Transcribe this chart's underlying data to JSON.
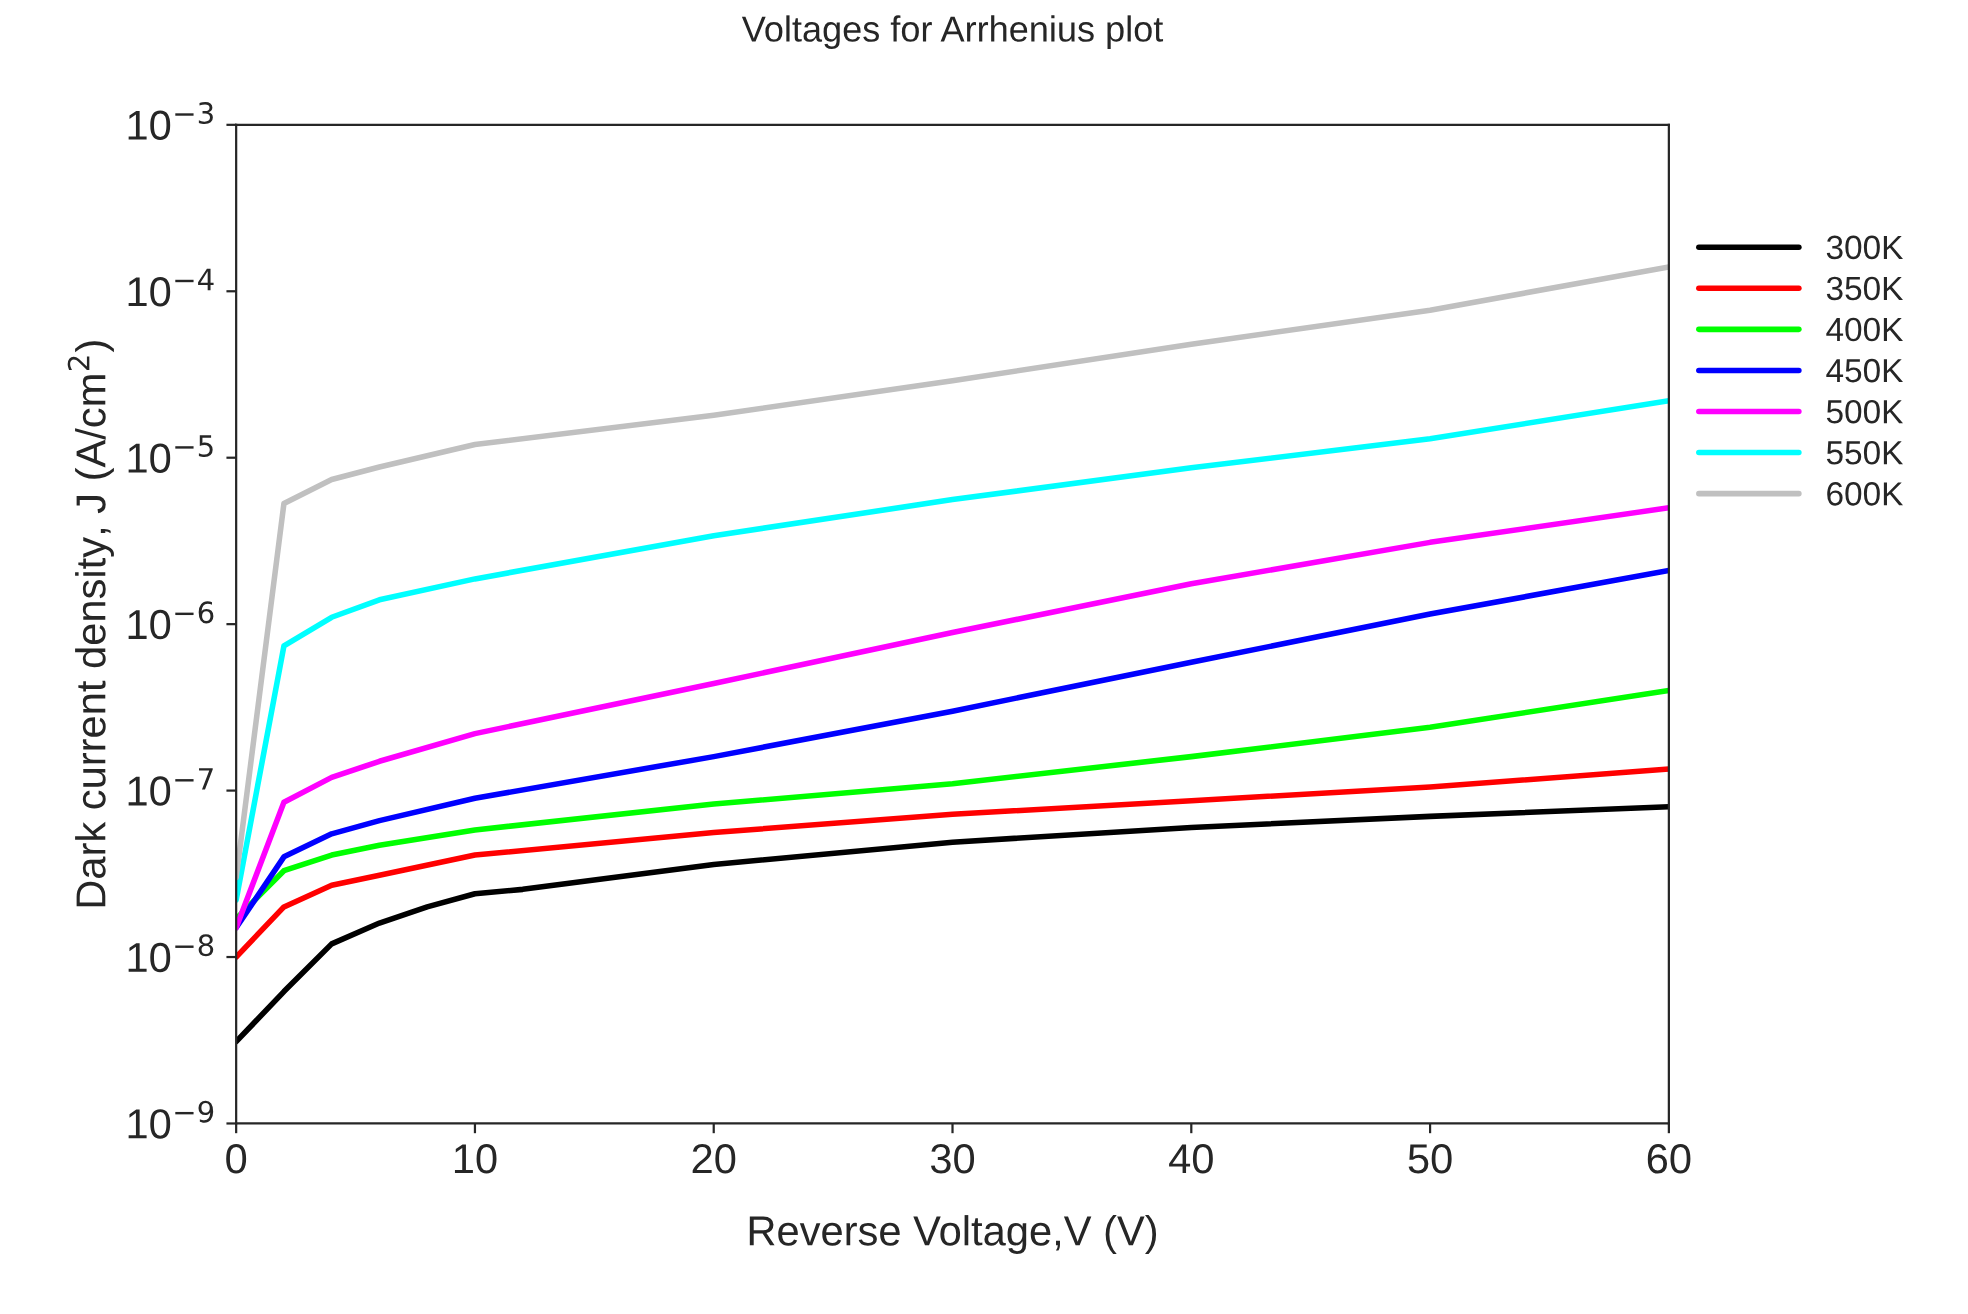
{
  "chart_data": {
    "type": "line",
    "title": "Voltages for Arrhenius plot",
    "xlabel": "Reverse Voltage,V (V)",
    "ylabel": "Dark current density, J (A/cm$^{2}$)",
    "x": [
      0,
      2,
      4,
      6,
      10,
      20,
      30,
      40,
      50,
      60
    ],
    "series": [
      {
        "name": "300K",
        "color": "#000000",
        "x": [
          0,
          2,
          4,
          6,
          8,
          10,
          12,
          20,
          30,
          40,
          50,
          60
        ],
        "values": [
          3.1e-09,
          6.2e-09,
          1.2e-08,
          1.6e-08,
          2e-08,
          2.4e-08,
          2.55e-08,
          3.6e-08,
          4.9e-08,
          6e-08,
          7e-08,
          8e-08
        ]
      },
      {
        "name": "350K",
        "color": "#ff0000",
        "values": [
          1e-08,
          2e-08,
          2.7e-08,
          3.1e-08,
          4.1e-08,
          5.6e-08,
          7.2e-08,
          8.7e-08,
          1.05e-07,
          1.35e-07
        ]
      },
      {
        "name": "400K",
        "color": "#00ff00",
        "values": [
          1.7e-08,
          3.3e-08,
          4.1e-08,
          4.7e-08,
          5.8e-08,
          8.3e-08,
          1.1e-07,
          1.6e-07,
          2.4e-07,
          4e-07
        ]
      },
      {
        "name": "450K",
        "color": "#0000ff",
        "values": [
          1.5e-08,
          4e-08,
          5.5e-08,
          6.6e-08,
          9e-08,
          1.6e-07,
          3e-07,
          5.9e-07,
          1.15e-06,
          2.1e-06
        ]
      },
      {
        "name": "500K",
        "color": "#ff00ff",
        "values": [
          1.5e-08,
          8.5e-08,
          1.2e-07,
          1.5e-07,
          2.2e-07,
          4.4e-07,
          8.9e-07,
          1.75e-06,
          3.1e-06,
          5e-06
        ]
      },
      {
        "name": "550K",
        "color": "#00ffff",
        "values": [
          2.2e-08,
          7.4e-07,
          1.1e-06,
          1.4e-06,
          1.87e-06,
          3.4e-06,
          5.6e-06,
          8.7e-06,
          1.3e-05,
          2.2e-05
        ]
      },
      {
        "name": "600K",
        "color": "#c0c0c0",
        "values": [
          3e-08,
          5.3e-06,
          7.4e-06,
          8.8e-06,
          1.2e-05,
          1.8e-05,
          2.9e-05,
          4.8e-05,
          7.7e-05,
          0.00014
        ]
      }
    ],
    "log": "y",
    "xlim": [
      0,
      60
    ],
    "xticks": [
      0,
      10,
      20,
      30,
      40,
      50,
      60
    ],
    "ylim": [
      1e-09,
      0.001
    ],
    "yticks": [
      {
        "value": 1e-09,
        "label": "10$^{−9}$"
      },
      {
        "value": 1e-08,
        "label": "10$^{−8}$"
      },
      {
        "value": 1e-07,
        "label": "10$^{−7}$"
      },
      {
        "value": 1e-06,
        "label": "10$^{−6}$"
      },
      {
        "value": 1e-05,
        "label": "10$^{−5}$"
      },
      {
        "value": 0.0001,
        "label": "10$^{−4}$"
      },
      {
        "value": 0.001,
        "label": "10$^{−3}$"
      }
    ],
    "grid": false,
    "legend": "right",
    "line_style": "solid",
    "marker": "none"
  }
}
